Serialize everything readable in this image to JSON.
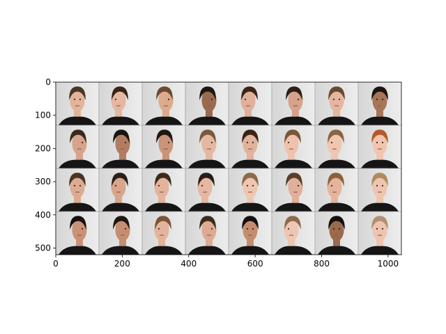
{
  "figure": {
    "x_ticks": [
      "0",
      "200",
      "400",
      "600",
      "800",
      "1000"
    ],
    "y_ticks": [
      "0",
      "100",
      "200",
      "300",
      "400",
      "500"
    ],
    "grid": {
      "rows": 4,
      "cols": 8
    },
    "subject": "face-portrait-photo",
    "colors": {
      "background": "#e4e4e4",
      "shirt": "#151515",
      "skin": "#d7a78c",
      "hair": "#3b2a20",
      "border": "#9a9a9a"
    },
    "tiles": [
      {
        "pose": "front",
        "hair": "#4a3526",
        "skin": "#e3b39a"
      },
      {
        "pose": "left",
        "hair": "#3a2418",
        "skin": "#e6b7a0"
      },
      {
        "pose": "right",
        "hair": "#6b4a2e",
        "skin": "#dcaa8d"
      },
      {
        "pose": "right",
        "hair": "#1e1712",
        "skin": "#9a6a4f"
      },
      {
        "pose": "left",
        "hair": "#3b2415",
        "skin": "#e0b09a"
      },
      {
        "pose": "right",
        "hair": "#2b1f18",
        "skin": "#d6a28a"
      },
      {
        "pose": "front",
        "hair": "#6a4a30",
        "skin": "#e5b6a0"
      },
      {
        "pose": "front",
        "hair": "#1a1410",
        "skin": "#a87558"
      },
      {
        "pose": "right",
        "hair": "#3a2a1e",
        "skin": "#d7a48b"
      },
      {
        "pose": "right",
        "hair": "#1a1410",
        "skin": "#b17d62"
      },
      {
        "pose": "right",
        "hair": "#1e1713",
        "skin": "#c99478"
      },
      {
        "pose": "right",
        "hair": "#7a5a3a",
        "skin": "#e4b79f"
      },
      {
        "pose": "front",
        "hair": "#3a2416",
        "skin": "#e1b29c"
      },
      {
        "pose": "left",
        "hair": "#7a5638",
        "skin": "#eec3ad"
      },
      {
        "pose": "left",
        "hair": "#8a6440",
        "skin": "#efc6b0"
      },
      {
        "pose": "front",
        "hair": "#b55a2a",
        "skin": "#f0c4ae"
      },
      {
        "pose": "front",
        "hair": "#4a3424",
        "skin": "#dcab92"
      },
      {
        "pose": "left",
        "hair": "#2a1f18",
        "skin": "#d8a68c"
      },
      {
        "pose": "left",
        "hair": "#3a2a1c",
        "skin": "#e4b39c"
      },
      {
        "pose": "left",
        "hair": "#2a1d14",
        "skin": "#e6b8a2"
      },
      {
        "pose": "front",
        "hair": "#8a6a48",
        "skin": "#eec6b1"
      },
      {
        "pose": "right",
        "hair": "#5a3e28",
        "skin": "#e0b09a"
      },
      {
        "pose": "left",
        "hair": "#8a6038",
        "skin": "#e6b49c"
      },
      {
        "pose": "front",
        "hair": "#b08a5a",
        "skin": "#eec5b1"
      },
      {
        "pose": "right",
        "hair": "#141010",
        "skin": "#c99274"
      },
      {
        "pose": "right",
        "hair": "#1e1612",
        "skin": "#c48e70"
      },
      {
        "pose": "left",
        "hair": "#7a5436",
        "skin": "#e4b39b"
      },
      {
        "pose": "right",
        "hair": "#3a2a1e",
        "skin": "#dcab92"
      },
      {
        "pose": "front",
        "hair": "#141010",
        "skin": "#c48d6e"
      },
      {
        "pose": "left",
        "hair": "#8a6a48",
        "skin": "#eec6b2"
      },
      {
        "pose": "front",
        "hair": "#141010",
        "skin": "#9a6a4d"
      },
      {
        "pose": "front",
        "hair": "#b09070",
        "skin": "#eec4b0"
      }
    ]
  }
}
